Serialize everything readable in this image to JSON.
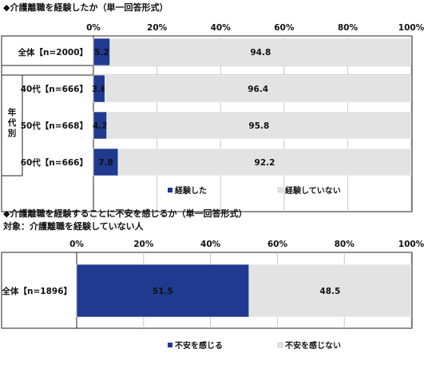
{
  "chart_data": [
    {
      "type": "bar",
      "orientation": "horizontal",
      "stacked": true,
      "title": "◆介護離職を経験したか（単一回答形式）",
      "categories": [
        "全体【n=2000】",
        "40代【n=666】",
        "50代【n=668】",
        "60代【n=666】"
      ],
      "group_label": "年代別",
      "series": [
        {
          "name": "経験した",
          "values": [
            5.2,
            3.6,
            4.2,
            7.8
          ],
          "color": "#1f3a8f"
        },
        {
          "name": "経験していない",
          "values": [
            94.8,
            96.4,
            95.8,
            92.2
          ],
          "color": "#e3e3e3"
        }
      ],
      "xlim": [
        0,
        100
      ],
      "xticks": [
        "0%",
        "20%",
        "40%",
        "60%",
        "80%",
        "100%"
      ],
      "legend_position": "bottom"
    },
    {
      "type": "bar",
      "orientation": "horizontal",
      "stacked": true,
      "title": "◆介護離職を経験することに不安を感じるか（単一回答形式）",
      "subtitle": "対象：介護離職を経験していない人",
      "categories": [
        "全体【n=1896】"
      ],
      "series": [
        {
          "name": "不安を感じる",
          "values": [
            51.5
          ],
          "color": "#1f3a8f"
        },
        {
          "name": "不安を感じない",
          "values": [
            48.5
          ],
          "color": "#e3e3e3"
        }
      ],
      "xlim": [
        0,
        100
      ],
      "xticks": [
        "0%",
        "20%",
        "40%",
        "60%",
        "80%",
        "100%"
      ],
      "legend_position": "bottom"
    }
  ]
}
